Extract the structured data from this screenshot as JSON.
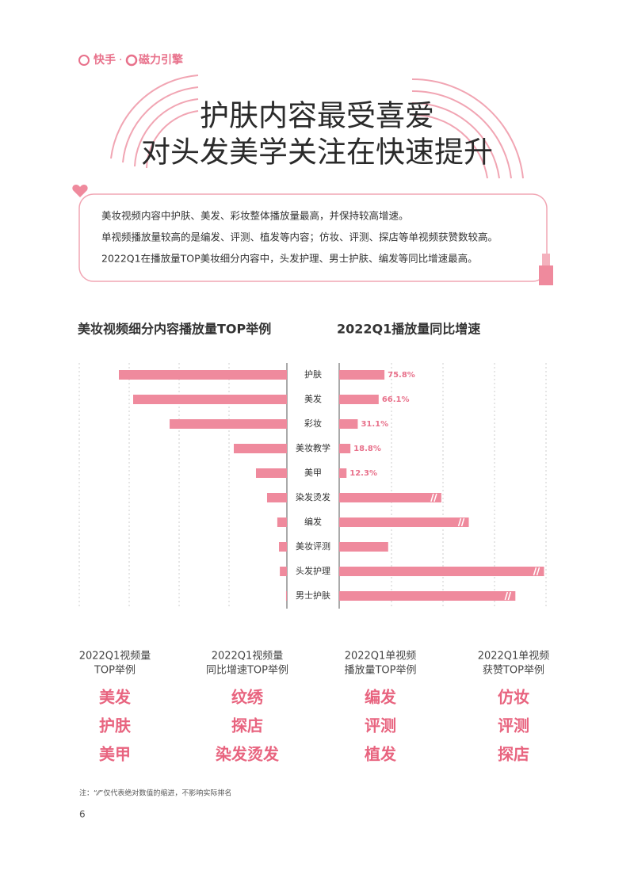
{
  "header": {
    "brand1": "快手",
    "separator": "·",
    "brand2": "磁力引擎"
  },
  "title": [
    "护肤内容最受喜爱",
    "对头发美学关注在快速提升"
  ],
  "summary": [
    "美妆视频内容中护肤、美发、彩妆整体播放量最高，并保持较高增速。",
    "单视频播放量较高的是编发、评测、植发等内容；仿妆、评测、探店等单视频获赞数较高。",
    "2022Q1在播放量TOP美妆细分内容中，头发护理、男士护肤、编发等同比增速最高。"
  ],
  "chart_data": [
    {
      "type": "bar",
      "orientation": "horizontal",
      "x_reversed": true,
      "title": "美妆视频细分内容播放量TOP举例",
      "categories": [
        "护肤",
        "美发",
        "彩妆",
        "美妆教学",
        "美甲",
        "染发烫发",
        "编发",
        "美妆评测",
        "头发护理",
        "男士护肤"
      ],
      "values": [
        100,
        91.5,
        69.8,
        31.6,
        18.4,
        11.8,
        5.7,
        4.7,
        4.2,
        0.5
      ],
      "color": "#ef8a9d",
      "xlim": [
        0,
        100
      ]
    },
    {
      "type": "bar",
      "orientation": "horizontal",
      "title": "2022Q1播放量同比增速",
      "values": [
        75.8,
        66.1,
        31.1,
        18.8,
        12.3,
        171,
        217,
        82,
        343,
        295
      ],
      "value_labels": [
        "75.8%",
        "66.1%",
        "31.1%",
        "18.8%",
        "12.3%",
        null,
        null,
        null,
        null,
        null
      ],
      "axis_break": [
        false,
        false,
        false,
        false,
        false,
        true,
        true,
        false,
        true,
        true
      ],
      "color": "#ef8a9d",
      "label_color": "#e8718b",
      "xlim": [
        0,
        345
      ]
    }
  ],
  "highlights": [
    {
      "heading": [
        "2022Q1视频量",
        "TOP举例"
      ],
      "items": [
        "美发",
        "护肤",
        "美甲"
      ]
    },
    {
      "heading": [
        "2022Q1视频量",
        "同比增速TOP举例"
      ],
      "items": [
        "纹绣",
        "探店",
        "染发烫发"
      ]
    },
    {
      "heading": [
        "2022Q1单视频",
        "播放量TOP举例"
      ],
      "items": [
        "编发",
        "评测",
        "植发"
      ]
    },
    {
      "heading": [
        "2022Q1单视频",
        "获赞TOP举例"
      ],
      "items": [
        "仿妆",
        "评测",
        "探店"
      ]
    }
  ],
  "note": "注：“⁄⁄”仅代表绝对数值的缩进，不影响实际排名",
  "page_number": "6"
}
